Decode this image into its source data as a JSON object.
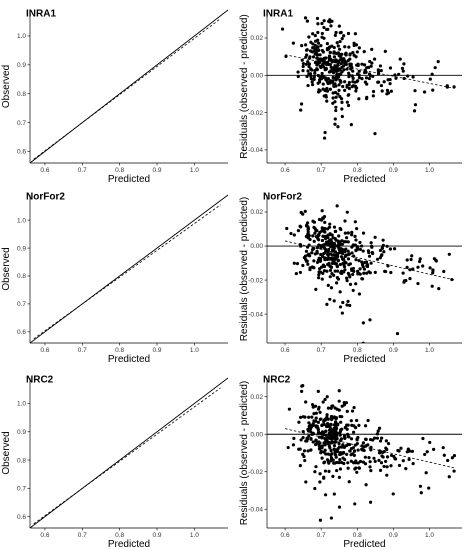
{
  "chart_data": [
    {
      "type": "scatter",
      "title": "INRA1",
      "xlabel": "Predicted",
      "ylabel": "Observed",
      "xlim": [
        0.56,
        1.09
      ],
      "ylim": [
        0.56,
        1.09
      ],
      "xticks": [
        "0.6",
        "0.7",
        "0.8",
        "0.9",
        "1.0"
      ],
      "yticks": [
        "0.6",
        "0.7",
        "0.8",
        "0.9",
        "1.0"
      ],
      "reference_line": "y = x (solid)",
      "fit_line": {
        "style": "dashed",
        "points": [
          [
            0.57,
            0.573
          ],
          [
            1.07,
            1.06
          ]
        ]
      },
      "n_points": 420,
      "grid": false
    },
    {
      "type": "scatter",
      "title": "INRA1",
      "xlabel": "Predicted",
      "ylabel": "Residuals (observed - predicted)",
      "xlim": [
        0.55,
        1.09
      ],
      "ylim": [
        -0.047,
        0.035
      ],
      "xticks": [
        "0.6",
        "0.7",
        "0.8",
        "0.9",
        "1.0"
      ],
      "yticks": [
        "0.02",
        "0.00",
        "-0.02",
        "-0.04"
      ],
      "reference_line": "y = 0 (solid)",
      "fit_line": {
        "style": "dashed",
        "points": [
          [
            0.6,
            0.011
          ],
          [
            1.07,
            -0.007
          ]
        ]
      },
      "n_points": 420,
      "grid": false
    },
    {
      "type": "scatter",
      "title": "NorFor2",
      "xlabel": "Predicted",
      "ylabel": "Observed",
      "xlim": [
        0.56,
        1.09
      ],
      "ylim": [
        0.56,
        1.09
      ],
      "xticks": [
        "0.6",
        "0.7",
        "0.8",
        "0.9",
        "1.0"
      ],
      "yticks": [
        "0.6",
        "0.7",
        "0.8",
        "0.9",
        "1.0"
      ],
      "reference_line": "y = x (solid)",
      "fit_line": {
        "style": "dashed",
        "points": [
          [
            0.57,
            0.575
          ],
          [
            1.07,
            1.055
          ]
        ]
      },
      "n_points": 420,
      "grid": false
    },
    {
      "type": "scatter",
      "title": "NorFor2",
      "xlabel": "Predicted",
      "ylabel": "Residuals (observed - predicted)",
      "xlim": [
        0.55,
        1.09
      ],
      "ylim": [
        -0.057,
        0.03
      ],
      "xticks": [
        "0.6",
        "0.7",
        "0.8",
        "0.9",
        "1.0"
      ],
      "yticks": [
        "0.02",
        "0.00",
        "-0.02",
        "-0.04"
      ],
      "reference_line": "y = 0 (solid)",
      "fit_line": {
        "style": "dashed",
        "points": [
          [
            0.6,
            0.003
          ],
          [
            1.07,
            -0.02
          ]
        ]
      },
      "n_points": 420,
      "grid": false
    },
    {
      "type": "scatter",
      "title": "NRC2",
      "xlabel": "Predicted",
      "ylabel": "Observed",
      "xlim": [
        0.56,
        1.09
      ],
      "ylim": [
        0.56,
        1.09
      ],
      "xticks": [
        "0.6",
        "0.7",
        "0.8",
        "0.9",
        "1.0"
      ],
      "yticks": [
        "0.6",
        "0.7",
        "0.8",
        "0.9",
        "1.0"
      ],
      "reference_line": "y = x (solid)",
      "fit_line": {
        "style": "dashed",
        "points": [
          [
            0.57,
            0.575
          ],
          [
            1.07,
            1.055
          ]
        ]
      },
      "n_points": 420,
      "grid": false
    },
    {
      "type": "scatter",
      "title": "NRC2",
      "xlabel": "Predicted",
      "ylabel": "Residuals (observed - predicted)",
      "xlim": [
        0.55,
        1.09
      ],
      "ylim": [
        -0.05,
        0.03
      ],
      "xticks": [
        "0.6",
        "0.7",
        "0.8",
        "0.9",
        "1.0"
      ],
      "yticks": [
        "0.02",
        "0.00",
        "-0.02",
        "-0.04"
      ],
      "reference_line": "y = 0 (solid)",
      "fit_line": {
        "style": "dashed",
        "points": [
          [
            0.6,
            0.003
          ],
          [
            1.07,
            -0.018
          ]
        ]
      },
      "n_points": 420,
      "grid": false
    }
  ]
}
